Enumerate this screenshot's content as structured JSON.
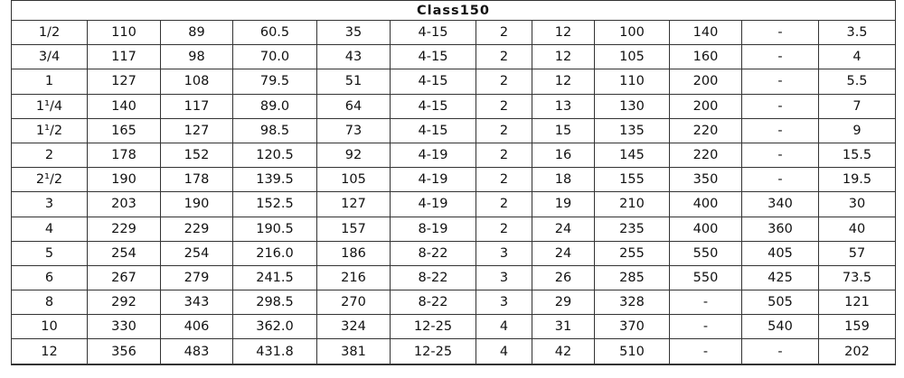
{
  "table": {
    "title": "Class150",
    "rows": [
      [
        "1/2",
        "110",
        "89",
        "60.5",
        "35",
        "4-15",
        "2",
        "12",
        "100",
        "140",
        "-",
        "3.5"
      ],
      [
        "3/4",
        "117",
        "98",
        "70.0",
        "43",
        "4-15",
        "2",
        "12",
        "105",
        "160",
        "-",
        "4"
      ],
      [
        "1",
        "127",
        "108",
        "79.5",
        "51",
        "4-15",
        "2",
        "12",
        "110",
        "200",
        "-",
        "5.5"
      ],
      [
        "1¹/4",
        "140",
        "117",
        "89.0",
        "64",
        "4-15",
        "2",
        "13",
        "130",
        "200",
        "-",
        "7"
      ],
      [
        "1¹/2",
        "165",
        "127",
        "98.5",
        "73",
        "4-15",
        "2",
        "15",
        "135",
        "220",
        "-",
        "9"
      ],
      [
        "2",
        "178",
        "152",
        "120.5",
        "92",
        "4-19",
        "2",
        "16",
        "145",
        "220",
        "-",
        "15.5"
      ],
      [
        "2¹/2",
        "190",
        "178",
        "139.5",
        "105",
        "4-19",
        "2",
        "18",
        "155",
        "350",
        "-",
        "19.5"
      ],
      [
        "3",
        "203",
        "190",
        "152.5",
        "127",
        "4-19",
        "2",
        "19",
        "210",
        "400",
        "340",
        "30"
      ],
      [
        "4",
        "229",
        "229",
        "190.5",
        "157",
        "8-19",
        "2",
        "24",
        "235",
        "400",
        "360",
        "40"
      ],
      [
        "5",
        "254",
        "254",
        "216.0",
        "186",
        "8-22",
        "3",
        "24",
        "255",
        "550",
        "405",
        "57"
      ],
      [
        "6",
        "267",
        "279",
        "241.5",
        "216",
        "8-22",
        "3",
        "26",
        "285",
        "550",
        "425",
        "73.5"
      ],
      [
        "8",
        "292",
        "343",
        "298.5",
        "270",
        "8-22",
        "3",
        "29",
        "328",
        "-",
        "505",
        "121"
      ],
      [
        "10",
        "330",
        "406",
        "362.0",
        "324",
        "12-25",
        "4",
        "31",
        "370",
        "-",
        "540",
        "159"
      ],
      [
        "12",
        "356",
        "483",
        "431.8",
        "381",
        "12-25",
        "4",
        "42",
        "510",
        "-",
        "-",
        "202"
      ]
    ]
  }
}
